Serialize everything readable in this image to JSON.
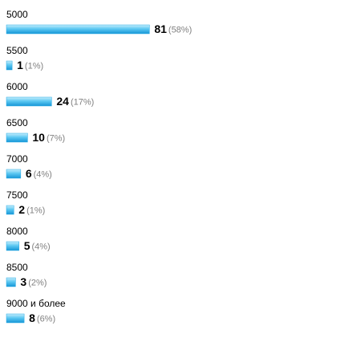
{
  "chart_data": {
    "type": "bar",
    "categories": [
      "5000",
      "5500",
      "6000",
      "6500",
      "7000",
      "7500",
      "8000",
      "8500",
      "9000 и более"
    ],
    "values": [
      81,
      1,
      24,
      10,
      6,
      2,
      5,
      3,
      8
    ],
    "percent_labels": [
      "(58%)",
      "(1%)",
      "(17%)",
      "(7%)",
      "(4%)",
      "(1%)",
      "(4%)",
      "(2%)",
      "(6%)"
    ],
    "color": "#29aae6"
  }
}
